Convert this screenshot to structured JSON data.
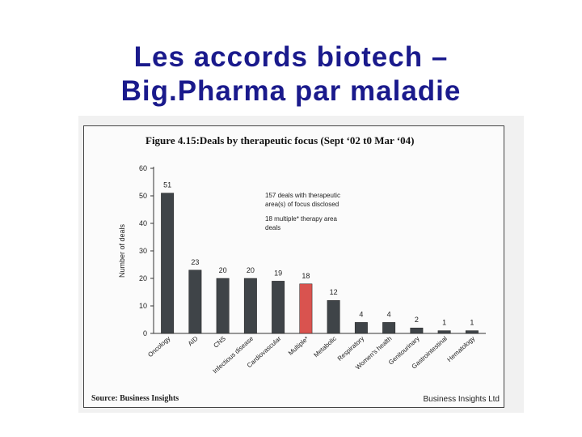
{
  "slide": {
    "title_line1": "Les accords biotech –",
    "title_line2": "Big.Pharma par maladie"
  },
  "figure": {
    "caption_prefix": "Figure 4.15:",
    "caption_text": "Deals by therapeutic focus (Sept ‘02 t0 Mar ‘04)",
    "source": "Source: Business Insights",
    "publisher": "Business Insights Ltd"
  },
  "colors": {
    "title": "#1a1a8c",
    "bar": "#3f4448",
    "highlight_bar": "#d9534f"
  },
  "chart_data": {
    "type": "bar",
    "ylabel": "Number of deals",
    "ylim": [
      0,
      60
    ],
    "yticks": [
      0,
      10,
      20,
      30,
      40,
      50,
      60
    ],
    "categories": [
      "Oncology",
      "AID",
      "CNS",
      "Infectious disease",
      "Cardiovascular",
      "Multiple*",
      "Metabolic",
      "Respiratory",
      "Women's health",
      "Genitourinary",
      "Gastrointestinal",
      "Hematology"
    ],
    "values": [
      51,
      23,
      20,
      20,
      19,
      18,
      12,
      4,
      4,
      2,
      1,
      1
    ],
    "highlight": "Multiple*",
    "annotations": [
      "157 deals with therapeutic",
      "area(s) of focus disclosed",
      "18 multiple* therapy area",
      "deals"
    ],
    "grid": false,
    "legend": "none"
  }
}
